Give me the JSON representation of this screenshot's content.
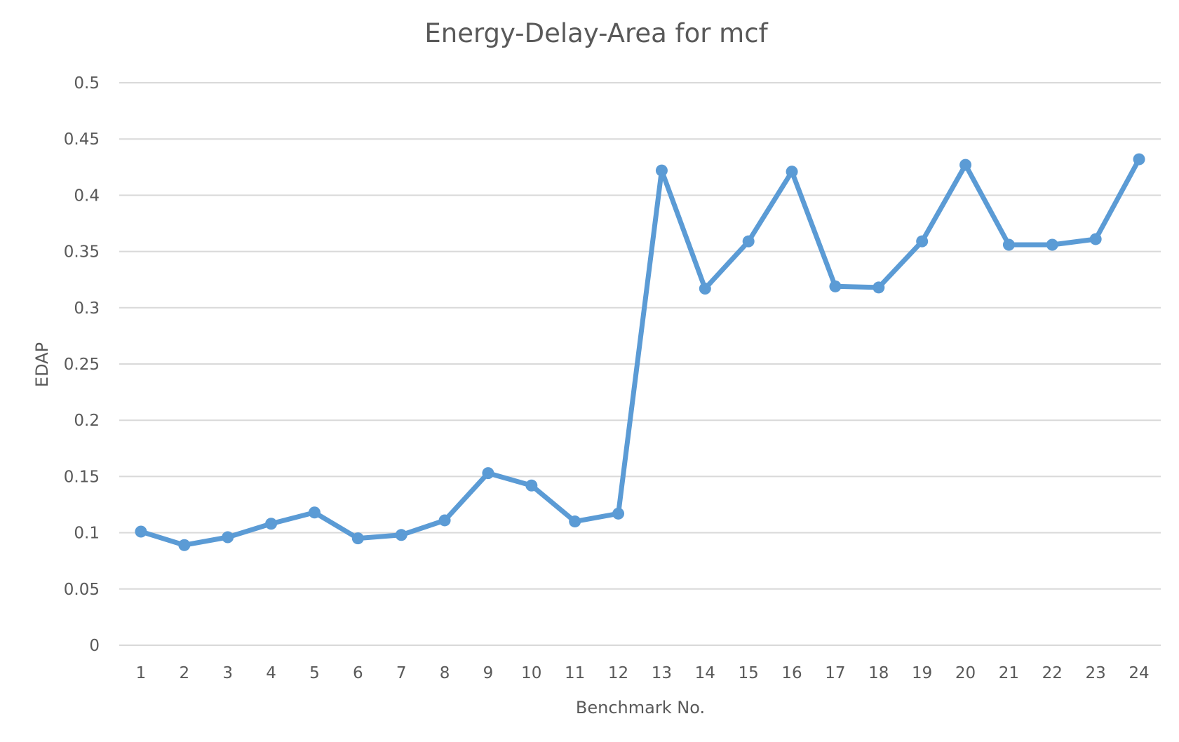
{
  "chart_data": {
    "type": "line",
    "title": "Energy-Delay-Area for mcf",
    "xlabel": "Benchmark No.",
    "ylabel": "EDAP",
    "categories": [
      "1",
      "2",
      "3",
      "4",
      "5",
      "6",
      "7",
      "8",
      "9",
      "10",
      "11",
      "12",
      "13",
      "14",
      "15",
      "16",
      "17",
      "18",
      "19",
      "20",
      "21",
      "22",
      "23",
      "24"
    ],
    "series": [
      {
        "values": [
          0.101,
          0.089,
          0.096,
          0.108,
          0.118,
          0.095,
          0.098,
          0.111,
          0.153,
          0.142,
          0.11,
          0.117,
          0.422,
          0.317,
          0.359,
          0.421,
          0.319,
          0.318,
          0.359,
          0.427,
          0.356,
          0.356,
          0.361,
          0.432
        ],
        "color": "#5b9bd5"
      }
    ],
    "ylim": [
      0,
      0.5
    ],
    "yticks": [
      "0",
      "0.05",
      "0.1",
      "0.15",
      "0.2",
      "0.25",
      "0.3",
      "0.35",
      "0.4",
      "0.45",
      "0.5"
    ],
    "grid": true,
    "legend": "none"
  },
  "colors": {
    "gridline": "#d9d9d9",
    "text": "#595959",
    "series": "#5b9bd5"
  }
}
